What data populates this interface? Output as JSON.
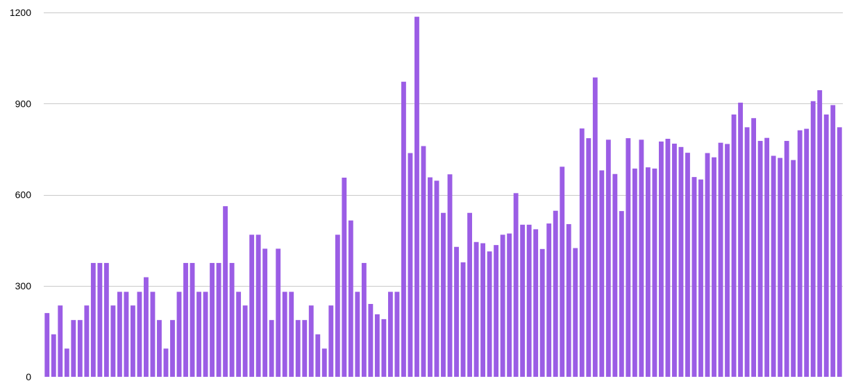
{
  "colors": {
    "bar": "#9b5de5",
    "grid": "#c8c8c8",
    "text": "#000000"
  },
  "chart_data": {
    "type": "bar",
    "title": "",
    "xlabel": "",
    "ylabel": "",
    "ylim": [
      0,
      1200
    ],
    "yticks": [
      0,
      300,
      600,
      900,
      1200
    ],
    "grid": true,
    "legend": "none",
    "values": [
      210,
      140,
      235,
      93,
      187,
      187,
      235,
      375,
      375,
      375,
      235,
      280,
      280,
      235,
      280,
      328,
      280,
      187,
      93,
      187,
      280,
      375,
      375,
      280,
      280,
      375,
      375,
      562,
      375,
      280,
      235,
      468,
      468,
      422,
      187,
      422,
      280,
      280,
      187,
      187,
      235,
      140,
      93,
      235,
      468,
      656,
      515,
      280,
      375,
      240,
      206,
      190,
      280,
      280,
      972,
      737,
      1186,
      760,
      657,
      646,
      540,
      667,
      428,
      377,
      540,
      444,
      440,
      413,
      434,
      468,
      472,
      605,
      501,
      501,
      486,
      421,
      505,
      547,
      692,
      503,
      424,
      818,
      786,
      986,
      680,
      781,
      668,
      546,
      786,
      686,
      781,
      690,
      686,
      775,
      784,
      768,
      757,
      738,
      658,
      650,
      737,
      723,
      771,
      767,
      864,
      903,
      822,
      852,
      777,
      787,
      728,
      721,
      777,
      714,
      812,
      817,
      908,
      944,
      864,
      895,
      822
    ]
  }
}
